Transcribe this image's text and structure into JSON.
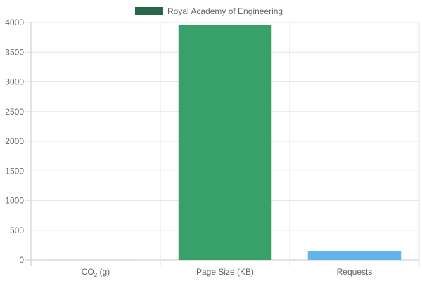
{
  "chart_data": {
    "type": "bar",
    "categories": [
      {
        "label": "CO",
        "sub": "2",
        "suffix": " (g)"
      },
      {
        "label": "Page Size (KB)",
        "sub": "",
        "suffix": ""
      },
      {
        "label": "Requests",
        "sub": "",
        "suffix": ""
      }
    ],
    "series": [
      {
        "name": "Royal Academy of Engineering",
        "values": [
          0.6,
          3954,
          147
        ],
        "bar_colors": [
          "#38a169",
          "#38a169",
          "#63b3ed"
        ]
      }
    ],
    "legend": {
      "position": "top",
      "label": "Royal Academy of Engineering",
      "swatch_color": "#276749"
    },
    "title": "",
    "xlabel": "",
    "ylabel": "",
    "ylim": [
      0,
      4000
    ],
    "y_ticks": [
      0,
      500,
      1000,
      1500,
      2000,
      2500,
      3000,
      3500,
      4000
    ],
    "grid": true,
    "colors": {
      "grid": "#e6e6e6",
      "axis": "#c8c8c8",
      "tick_text": "#666666"
    }
  }
}
